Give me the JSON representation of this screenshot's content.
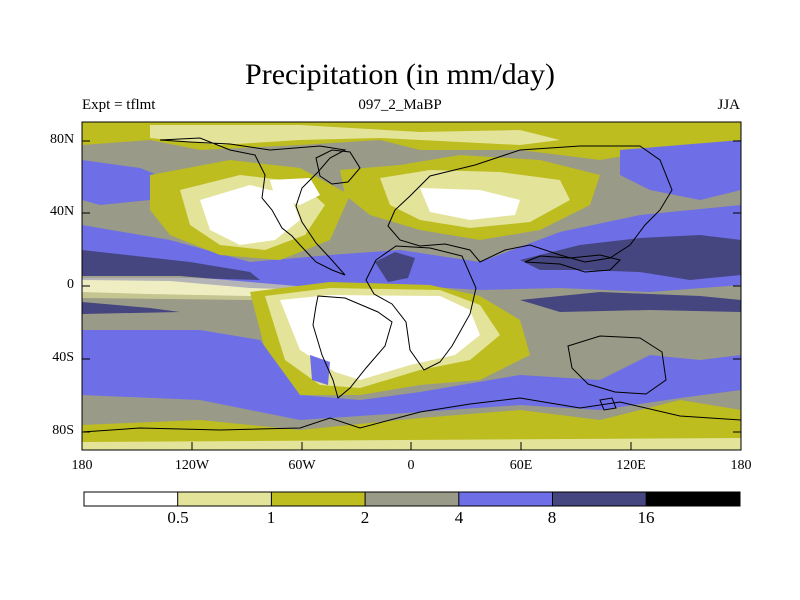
{
  "chart_data": {
    "type": "heatmap",
    "title": "Precipitation (in mm/day)",
    "left_string": "Expt = tflmt",
    "center_string": "097_2_MaBP",
    "right_string": "JJA",
    "x_ticks": [
      "180",
      "120W",
      "60W",
      "0",
      "60E",
      "120E",
      "180"
    ],
    "y_ticks": [
      "80N",
      "40N",
      "0",
      "40S",
      "80S"
    ],
    "xlim": [
      -180,
      180
    ],
    "ylim": [
      -90,
      90
    ],
    "contour_levels": [
      "0.5",
      "1",
      "2",
      "4",
      "8",
      "16"
    ],
    "colorbar_colors": [
      "#ffffff",
      "#e3e39a",
      "#bdbd1f",
      "#9a9a88",
      "#6e6ee6",
      "#45457f",
      "#000000"
    ]
  }
}
